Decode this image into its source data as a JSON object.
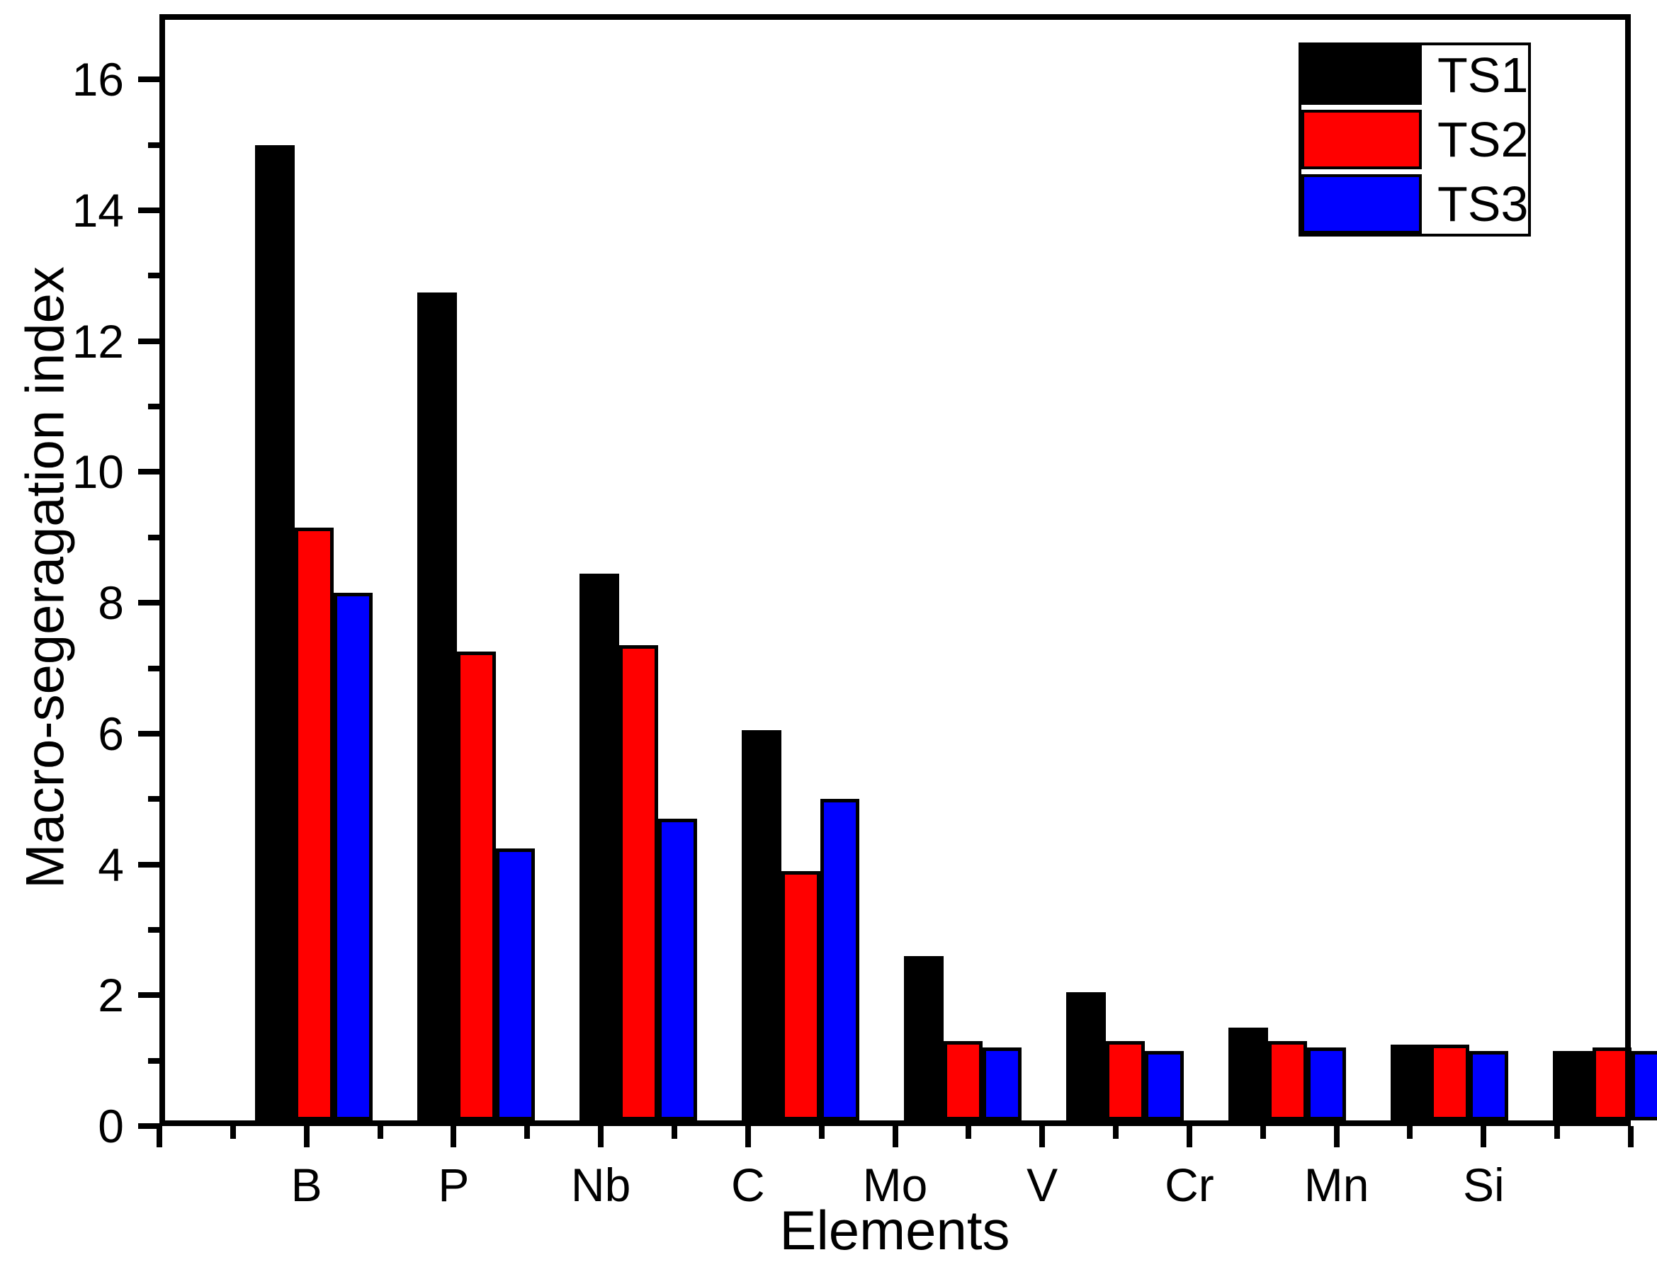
{
  "chart_data": {
    "type": "bar",
    "title": "",
    "xlabel": "Elements",
    "ylabel": "Macro-segeragation index",
    "categories": [
      "B",
      "P",
      "Nb",
      "C",
      "Mo",
      "V",
      "Cr",
      "Mn",
      "Si"
    ],
    "series": [
      {
        "name": "TS1",
        "color": "#000000",
        "values": [
          15.0,
          12.75,
          8.45,
          6.05,
          2.6,
          2.05,
          1.5,
          1.25,
          1.15
        ]
      },
      {
        "name": "TS2",
        "color": "#ff0000",
        "values": [
          9.15,
          7.25,
          7.35,
          3.9,
          1.3,
          1.3,
          1.3,
          1.25,
          1.2
        ]
      },
      {
        "name": "TS3",
        "color": "#0000ff",
        "values": [
          8.15,
          4.25,
          4.7,
          5.0,
          1.2,
          1.15,
          1.2,
          1.15,
          1.15
        ]
      }
    ],
    "ylim": [
      0,
      17
    ],
    "yticks_major": [
      0,
      2,
      4,
      6,
      8,
      10,
      12,
      14,
      16
    ],
    "yticks_minor": [
      1,
      3,
      5,
      7,
      9,
      11,
      13,
      15
    ],
    "grid": false,
    "legend_position": "top-right",
    "bar_outline_color": "#000000",
    "background_color": "#ffffff"
  }
}
